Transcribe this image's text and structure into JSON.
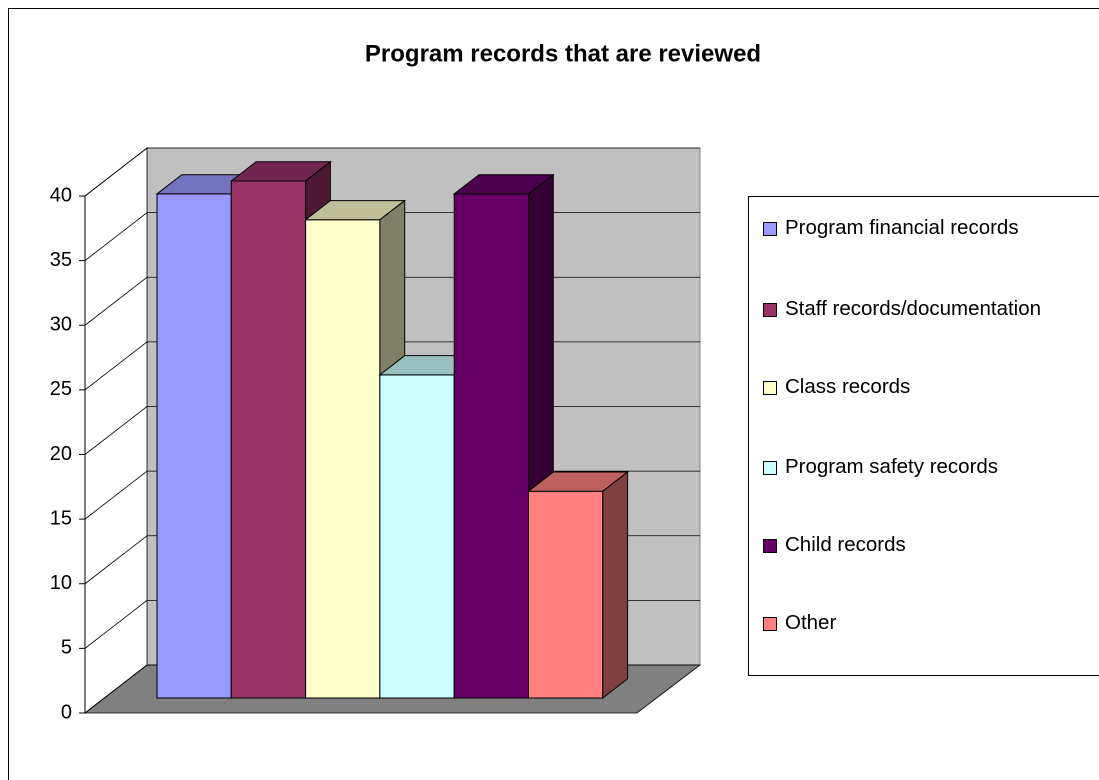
{
  "chart_data": {
    "type": "bar3d",
    "title": "Program records that are reviewed",
    "categories": [
      null
    ],
    "series": [
      {
        "name": "Program financial records",
        "color": "#9999FF",
        "values": [
          39
        ]
      },
      {
        "name": "Staff records/documentation",
        "color": "#993366",
        "values": [
          40
        ]
      },
      {
        "name": "Class records",
        "color": "#FFFFCC",
        "values": [
          37
        ]
      },
      {
        "name": "Program safety records",
        "color": "#CCFFFF",
        "values": [
          25
        ]
      },
      {
        "name": "Child records",
        "color": "#660066",
        "values": [
          39
        ]
      },
      {
        "name": "Other",
        "color": "#FF8080",
        "values": [
          16
        ]
      }
    ],
    "ylim": [
      0,
      40
    ],
    "yticks": [
      0,
      5,
      10,
      15,
      20,
      25,
      30,
      35,
      40
    ],
    "grid": true,
    "legend": "right"
  }
}
